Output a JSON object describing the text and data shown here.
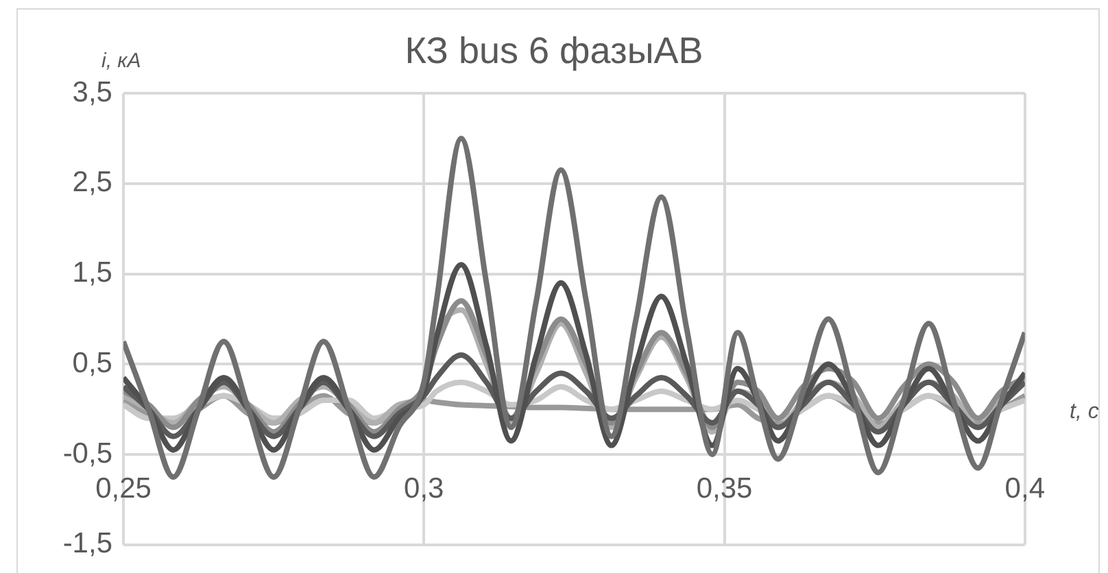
{
  "chart_data": {
    "type": "line",
    "title": "КЗ bus 6 фазыАВ",
    "xlabel": "t, c",
    "ylabel": "i, кА",
    "x": [
      0.25,
      0.2542,
      0.2583,
      0.2625,
      0.2667,
      0.2708,
      0.275,
      0.2792,
      0.2833,
      0.2875,
      0.2917,
      0.2958,
      0.3,
      0.3021,
      0.3062,
      0.3104,
      0.3145,
      0.3187,
      0.3228,
      0.327,
      0.3312,
      0.3353,
      0.3395,
      0.3437,
      0.348,
      0.3522,
      0.3556,
      0.3589,
      0.3631,
      0.3673,
      0.3715,
      0.3756,
      0.3798,
      0.384,
      0.3881,
      0.3922,
      0.3961,
      0.4
    ],
    "series": [
      {
        "color": "#707070",
        "values": [
          0.75,
          0,
          -0.75,
          0,
          0.75,
          0,
          -0.75,
          0,
          0.75,
          0,
          -0.75,
          -0.2,
          0.3,
          1.2,
          3.0,
          1.4,
          -0.2,
          1.2,
          2.65,
          1.2,
          -0.3,
          1.0,
          2.35,
          0.9,
          -0.5,
          0.85,
          0.1,
          -0.55,
          0.2,
          1.0,
          0.15,
          -0.7,
          0.1,
          0.95,
          0.1,
          -0.65,
          0.1,
          0.85
        ]
      },
      {
        "color": "#505050",
        "values": [
          0.35,
          0,
          -0.45,
          0,
          0.35,
          0,
          -0.45,
          0,
          0.35,
          0,
          -0.45,
          -0.1,
          0.2,
          0.8,
          1.6,
          0.7,
          -0.35,
          0.6,
          1.4,
          0.6,
          -0.4,
          0.5,
          1.25,
          0.5,
          -0.4,
          0.45,
          0.1,
          -0.35,
          0.1,
          0.5,
          0.1,
          -0.4,
          0.05,
          0.45,
          0.05,
          -0.35,
          0.05,
          0.4
        ]
      },
      {
        "color": "#5a5a5a",
        "values": [
          0.25,
          0,
          -0.3,
          0,
          0.3,
          0,
          -0.3,
          0,
          0.3,
          0,
          -0.3,
          -0.05,
          0.15,
          0.35,
          0.6,
          0.3,
          -0.1,
          0.2,
          0.4,
          0.2,
          -0.1,
          0.15,
          0.35,
          0.15,
          -0.15,
          0.2,
          0.05,
          -0.2,
          0.05,
          0.3,
          0.05,
          -0.25,
          0.05,
          0.3,
          0.05,
          -0.2,
          0.05,
          0.3
        ]
      },
      {
        "color": "#8c8c8c",
        "values": [
          0.2,
          0.05,
          -0.2,
          0.1,
          0.3,
          0.05,
          -0.25,
          0.05,
          0.3,
          0.05,
          -0.25,
          0,
          0.25,
          0.7,
          1.2,
          0.6,
          -0.1,
          0.5,
          1.0,
          0.5,
          -0.15,
          0.4,
          0.85,
          0.4,
          -0.2,
          0.3,
          0.2,
          -0.1,
          0.25,
          0.45,
          0.3,
          -0.1,
          0.25,
          0.5,
          0.3,
          -0.1,
          0.2,
          0.35
        ]
      },
      {
        "color": "#b0b0b0",
        "values": [
          0.15,
          0,
          -0.15,
          0.1,
          0.25,
          0.05,
          -0.15,
          0.1,
          0.25,
          0.05,
          -0.15,
          0.05,
          0.2,
          0.8,
          1.1,
          0.5,
          -0.15,
          0.4,
          0.95,
          0.4,
          -0.2,
          0.35,
          0.8,
          0.35,
          -0.25,
          0.2,
          0.1,
          -0.2,
          0.1,
          0.3,
          0.15,
          -0.2,
          0.1,
          0.3,
          0.15,
          -0.2,
          0.1,
          0.3
        ]
      },
      {
        "color": "#c8c8c8",
        "values": [
          0.05,
          -0.1,
          -0.1,
          0.05,
          0.15,
          0.05,
          -0.1,
          -0.05,
          0.1,
          0.1,
          -0.1,
          0,
          0.05,
          0.2,
          0.3,
          0.2,
          0.05,
          0.1,
          0.25,
          0.1,
          0,
          0.1,
          0.2,
          0.1,
          0,
          0.1,
          0,
          -0.1,
          0,
          0.15,
          0.05,
          -0.1,
          0,
          0.15,
          0.05,
          -0.1,
          0,
          0.1
        ]
      },
      {
        "color": "#999999",
        "values": [
          0.1,
          -0.05,
          -0.15,
          0,
          0.15,
          -0.05,
          -0.15,
          0,
          0.15,
          -0.05,
          -0.15,
          0,
          0.1,
          0.08,
          0.05,
          0.04,
          0.03,
          0.02,
          0.02,
          0.01,
          0,
          0,
          0,
          0,
          0,
          0.05,
          -0.1,
          -0.15,
          0,
          0.15,
          0,
          -0.15,
          0,
          0.15,
          0,
          -0.15,
          0,
          0.15
        ]
      }
    ],
    "xlim": [
      0.25,
      0.4
    ],
    "xticks": [
      {
        "value": 0.25,
        "label": "0,25"
      },
      {
        "value": 0.3,
        "label": "0,3"
      },
      {
        "value": 0.35,
        "label": "0,35"
      },
      {
        "value": 0.4,
        "label": "0,4"
      }
    ],
    "ylim": [
      -1.5,
      3.5
    ],
    "yticks": [
      {
        "value": -1.5,
        "label": "-1,5"
      },
      {
        "value": -0.5,
        "label": "-0,5"
      },
      {
        "value": 0.5,
        "label": "0,5"
      },
      {
        "value": 1.5,
        "label": "1,5"
      },
      {
        "value": 2.5,
        "label": "2,5"
      },
      {
        "value": 3.5,
        "label": "3,5"
      }
    ],
    "grid": true,
    "legend": false
  }
}
